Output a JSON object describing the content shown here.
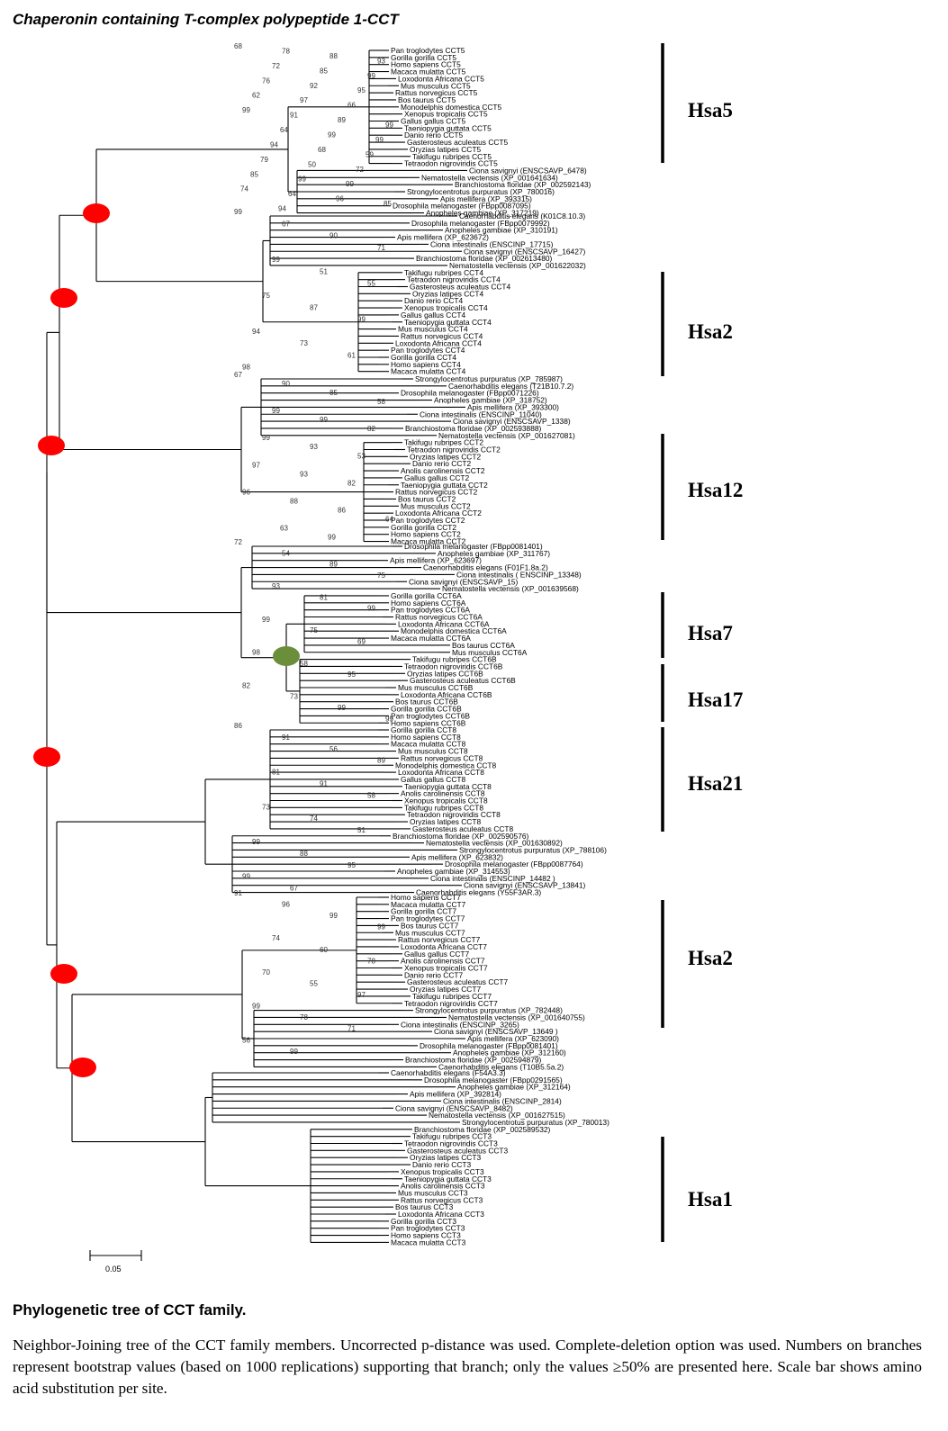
{
  "title": "Chaperonin containing T-complex polypeptide 1-CCT",
  "colors": {
    "duplication_node": "#ff0000",
    "special_node": "#6b8e3a",
    "branch": "#000000"
  },
  "leaves": [
    "Pan troglodytes CCT5",
    "Gorilla gorilla CCT5",
    "Homo sapiens CCT5",
    "Macaca mulatta CCT5",
    "Loxodonta Africana CCT5",
    "Mus musculus CCT5",
    "Rattus norvegicus CCT5",
    "Bos taurus CCT5",
    "Monodelphis domestica CCT5",
    "Xenopus tropicalis CCT5",
    "Gallus gallus CCT5",
    "Taeniopygia guttata CCT5",
    "Danio rerio CCT5",
    "Gasterosteus aculeatus CCT5",
    "Oryzias latipes CCT5",
    "Takifugu rubripes CCT5",
    "Tetraodon nigroviridis CCT5",
    "Ciona savignyi (ENSCSAVP_6478)",
    "Nematostella vectensis (XP_001641634)",
    "Branchiostoma floridae (XP_002592143)",
    "Strongylocentrotus purpuratus (XP_780016)",
    "Apis mellifera (XP_393315)",
    "Drosophila melanogaster (FBpp0087095)",
    "Anopheles gambiae (XP_317219)",
    "Caenorhabditis elegans (K01C8.10.3)",
    "Drosophila melanogaster (FBpp0079992)",
    "Anopheles gambiae (XP_310191)",
    "Apis mellifera (XP_623672)",
    "Ciona intestinalis (ENSCINP_17715)",
    "Ciona savignyi (ENSCSAVP_16427)",
    "Branchiostoma floridae (XP_002613480)",
    "Nematostella vectensis (XP_001622032)",
    "Takifugu rubripes CCT4",
    "Tetraodon nigroviridis CCT4",
    "Gasterosteus aculeatus CCT4",
    "Oryzias latipes CCT4",
    "Danio rerio CCT4",
    "Xenopus tropicalis CCT4",
    "Gallus gallus CCT4",
    "Taeniopygia guttata CCT4",
    "Mus musculus CCT4",
    "Rattus norvegicus CCT4",
    "Loxodonta Africana CCT4",
    "Pan troglodytes CCT4",
    "Gorilla gorilla CCT4",
    "Homo sapiens CCT4",
    "Macaca mulatta CCT4",
    "Strongylocentrotus purpuratus (XP_785987)",
    "Caenorhabditis elegans (T21B10.7.2)",
    "Drosophila melanogaster (FBpp0071226)",
    "Anopheles gambiae (XP_318752)",
    "Apis mellifera (XP_393300)",
    "Ciona intestinalis (ENSCINP_11040)",
    "Ciona savignyi (ENSCSAVP_1338)",
    "Branchiostoma floridae (XP_002593888)",
    "Nematostella vectensis (XP_001627081)",
    "Takifugu rubripes CCT2",
    "Tetraodon nigroviridis CCT2",
    "Oryzias latipes CCT2",
    "Danio rerio CCT2",
    "Anolis carolinensis CCT2",
    "Gallus gallus CCT2",
    "Taeniopygia guttata CCT2",
    "Rattus norvegicus CCT2",
    "Bos taurus CCT2",
    "Mus musculus CCT2",
    "Loxodonta Africana CCT2",
    "Pan troglodytes CCT2",
    "Gorilla gorilla CCT2",
    "Homo sapiens CCT2",
    "Macaca mulatta CCT2",
    "Drosophila melanogaster (FBpp0081401)",
    "Anopheles gambiae (XP_311767)",
    "Apis mellifera (XP_623697)",
    "Caenorhabditis elegans (F01F1.8a.2)",
    "Ciona intestinalis ( ENSCINP_13348)",
    "Ciona savignyi (ENSCSAVP_15)",
    "Nematostella vectensis (XP_001639568)",
    "Gorilla gorilla CCT6A",
    "Homo sapiens CCT6A",
    "Pan troglodytes CCT6A",
    "Rattus norvegicus CCT6A",
    "Loxodonta Africana CCT6A",
    "Monodelphis domestica CCT6A",
    "Macaca mulatta CCT6A",
    "Bos taurus CCT6A",
    "Mus musculus CCT6A",
    "Takifugu rubripes CCT6B",
    "Tetraodon nigroviridis CCT6B",
    "Oryzias latipes CCT6B",
    "Gasterosteus aculeatus CCT6B",
    "Mus musculus CCT6B",
    "Loxodonta Africana CCT6B",
    "Bos taurus CCT6B",
    "Gorilla gorilla CCT6B",
    "Pan troglodytes CCT6B",
    "Homo sapiens CCT6B",
    "Gorilla gorilla CCT8",
    "Homo sapiens CCT8",
    "Macaca mulatta CCT8",
    "Mus musculus CCT8",
    "Rattus norvegicus CCT8",
    "Monodelphis domestica CCT8",
    "Loxodonta Africana CCT8",
    "Gallus gallus CCT8",
    "Taeniopygia guttata CCT8",
    "Anolis carolinensis CCT8",
    "Xenopus tropicalis CCT8",
    "Takifugu rubripes CCT8",
    "Tetraodon nigroviridis CCT8",
    "Oryzias latipes CCT8",
    "Gasterosteus aculeatus CCT8",
    "Branchiostoma floridae (XP_002590576)",
    "Nematostella vectensis (XP_001630892)",
    "Strongylocentrotus purpuratus (XP_788106)",
    "Apis mellifera (XP_623832)",
    "Drosophila melanogaster (FBpp0087764)",
    "Anopheles gambiae (XP_314553)",
    "Ciona intestinalis (ENSCINP_14482 )",
    "Ciona savignyi (ENSCSAVP_13841)",
    "Caenorhabditis elegans (Y55F3AR.3)",
    "Homo sapiens CCT7",
    "Macaca mulatta CCT7",
    "Gorilla gorilla CCT7",
    "Pan troglodytes CCT7",
    "Bos taurus CCT7",
    "Mus musculus CCT7",
    "Rattus norvegicus CCT7",
    "Loxodonta Africana CCT7",
    "Gallus gallus CCT7",
    "Anolis carolinensis CCT7",
    "Xenopus tropicalis CCT7",
    "Danio rerio CCT7",
    "Gasterosteus aculeatus CCT7",
    "Oryzias latipes CCT7",
    "Takifugu rubripes CCT7",
    "Tetraodon nigroviridis CCT7",
    "Strongylocentrotus purpuratus (XP_782448)",
    "Nematostella vectensis (XP_001640755)",
    "Ciona intestinalis (ENSCINP_3265)",
    "Ciona savignyi (ENSCSAVP_13649 )",
    "Apis mellifera (XP_623090)",
    "Drosophila melanogaster (FBpp0081401)",
    "Anopheles gambiae (XP_312160)",
    "Branchiostoma floridae (XP_002594879)",
    "Caenorhabditis elegans (T10B5.5a.2)",
    "Caenorhabditis elegans (F54A3.3)",
    "Drosophila melanogaster (FBpp0291565)",
    "Anopheles gambiae (XP_312164)",
    "Apis mellifera (XP_392814)",
    "Ciona intestinalis (ENSCINP_2814)",
    "Ciona savignyi (ENSCSAVP_8482)",
    "Nematostella vectensis (XP_001627515)",
    "Strongylocentrotus purpuratus (XP_780013)",
    "Branchiostoma floridae (XP_002589532)",
    "Takifugu rubripes CCT3",
    "Tetraodon nigroviridis CCT3",
    "Gasterosteus aculeatus CCT3",
    "Oryzias latipes CCT3",
    "Danio rerio CCT3",
    "Xenopus tropicalis CCT3",
    "Taeniopygia guttata CCT3",
    "Anolis carolinensis CCT3",
    "Mus musculus CCT3",
    "Rattus norvegicus CCT3",
    "Bos taurus CCT3",
    "Loxodonta Africana CCT3",
    "Gorilla gorilla CCT3",
    "Pan troglodytes CCT3",
    "Homo sapiens CCT3",
    "Macaca mulatta CCT3"
  ],
  "bootstrap": [
    "68",
    "78",
    "88",
    "93",
    "72",
    "85",
    "99",
    "76",
    "92",
    "95",
    "62",
    "97",
    "66",
    "99",
    "91",
    "89",
    "99",
    "64",
    "99",
    "99",
    "94",
    "68",
    "59",
    "79",
    "50",
    "72",
    "85",
    "99",
    "99",
    "74",
    "64",
    "96",
    "85",
    "94",
    "99",
    "67",
    "90",
    "71",
    "99",
    "51",
    "55",
    "75",
    "87",
    "99",
    "94",
    "73",
    "61",
    "98",
    "67",
    "90",
    "85",
    "58",
    "99",
    "99",
    "82",
    "99",
    "93",
    "53",
    "97",
    "93",
    "82",
    "96",
    "88",
    "86",
    "64",
    "63",
    "99",
    "72",
    "54",
    "89",
    "75",
    "93",
    "81",
    "99",
    "99",
    "75",
    "69",
    "98",
    "58",
    "95",
    "82",
    "73",
    "99",
    "99",
    "86",
    "91",
    "56",
    "89",
    "81",
    "91",
    "58",
    "73",
    "74",
    "51",
    "99",
    "88",
    "95",
    "99",
    "67",
    "91",
    "96",
    "99",
    "99",
    "74",
    "60",
    "78",
    "70",
    "55",
    "97",
    "99",
    "78",
    "71",
    "56",
    "99"
  ],
  "clades": [
    "Hsa5",
    "Hsa2",
    "Hsa12",
    "Hsa7",
    "Hsa17",
    "Hsa21",
    "Hsa2",
    "Hsa1"
  ],
  "scale_bar": "0.05",
  "caption": {
    "title": "Phylogenetic tree of CCT family.",
    "text": "Neighbor-Joining tree of the CCT family members. Uncorrected p-distance was used. Complete-deletion option was used. Numbers on branches represent bootstrap values (based on 1000 replications) supporting that branch; only the values ≥50% are presented here. Scale bar shows amino acid substitution per site."
  }
}
